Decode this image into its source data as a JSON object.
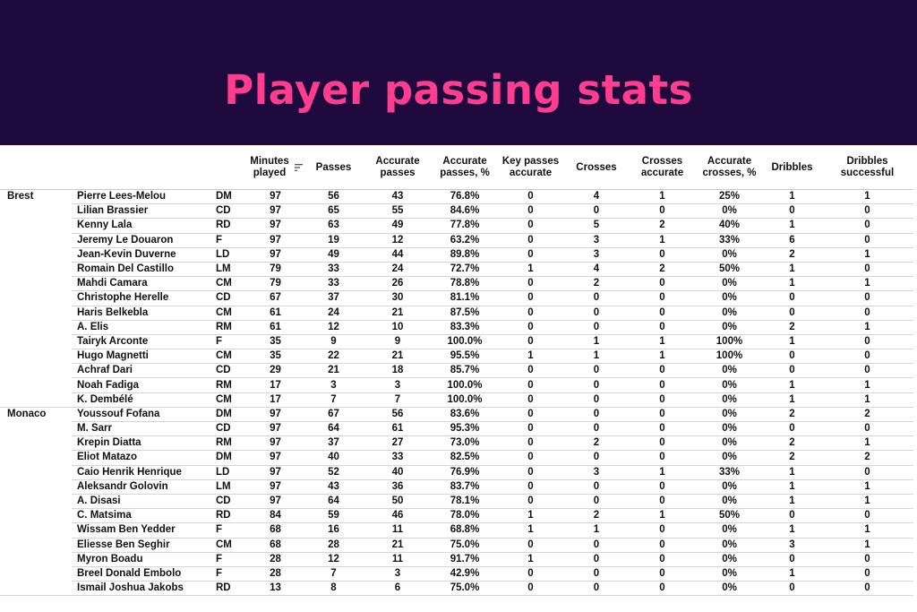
{
  "title": "Player passing stats",
  "columns": {
    "minutes": "Minutes played",
    "passes": "Passes",
    "accurate_passes": "Accurate passes",
    "accurate_passes_pct": "Accurate passes, %",
    "key_passes": "Key passes accurate",
    "crosses": "Crosses",
    "crosses_accurate": "Crosses accurate",
    "crosses_pct": "Accurate crosses, %",
    "dribbles": "Dribbles",
    "dribbles_successful": "Dribbles successful"
  },
  "sort_icon": "sort-descending-icon",
  "teams": [
    {
      "name": "Brest",
      "players": [
        [
          "Pierre Lees-Melou",
          "DM",
          "97",
          "56",
          "43",
          "76.8%",
          "0",
          "4",
          "1",
          "25%",
          "1",
          "1"
        ],
        [
          "Lilian Brassier",
          "CD",
          "97",
          "65",
          "55",
          "84.6%",
          "0",
          "0",
          "0",
          "0%",
          "0",
          "0"
        ],
        [
          "Kenny Lala",
          "RD",
          "97",
          "63",
          "49",
          "77.8%",
          "0",
          "5",
          "2",
          "40%",
          "1",
          "0"
        ],
        [
          "Jeremy Le Douaron",
          "F",
          "97",
          "19",
          "12",
          "63.2%",
          "0",
          "3",
          "1",
          "33%",
          "6",
          "0"
        ],
        [
          "Jean-Kevin Duverne",
          "LD",
          "97",
          "49",
          "44",
          "89.8%",
          "0",
          "3",
          "0",
          "0%",
          "2",
          "1"
        ],
        [
          "Romain Del Castillo",
          "LM",
          "79",
          "33",
          "24",
          "72.7%",
          "1",
          "4",
          "2",
          "50%",
          "1",
          "0"
        ],
        [
          "Mahdi Camara",
          "CM",
          "79",
          "33",
          "26",
          "78.8%",
          "0",
          "2",
          "0",
          "0%",
          "1",
          "1"
        ],
        [
          "Christophe Herelle",
          "CD",
          "67",
          "37",
          "30",
          "81.1%",
          "0",
          "0",
          "0",
          "0%",
          "0",
          "0"
        ],
        [
          "Haris Belkebla",
          "CM",
          "61",
          "24",
          "21",
          "87.5%",
          "0",
          "0",
          "0",
          "0%",
          "0",
          "0"
        ],
        [
          "A. Elis",
          "RM",
          "61",
          "12",
          "10",
          "83.3%",
          "0",
          "0",
          "0",
          "0%",
          "2",
          "1"
        ],
        [
          "Tairyk Arconte",
          "F",
          "35",
          "9",
          "9",
          "100.0%",
          "0",
          "1",
          "1",
          "100%",
          "1",
          "0"
        ],
        [
          "Hugo Magnetti",
          "CM",
          "35",
          "22",
          "21",
          "95.5%",
          "1",
          "1",
          "1",
          "100%",
          "0",
          "0"
        ],
        [
          "Achraf Dari",
          "CD",
          "29",
          "21",
          "18",
          "85.7%",
          "0",
          "0",
          "0",
          "0%",
          "0",
          "0"
        ],
        [
          "Noah Fadiga",
          "RM",
          "17",
          "3",
          "3",
          "100.0%",
          "0",
          "0",
          "0",
          "0%",
          "1",
          "1"
        ],
        [
          "K. Dembélé",
          "CM",
          "17",
          "7",
          "7",
          "100.0%",
          "0",
          "0",
          "0",
          "0%",
          "1",
          "1"
        ]
      ]
    },
    {
      "name": "Monaco",
      "players": [
        [
          "Youssouf Fofana",
          "DM",
          "97",
          "67",
          "56",
          "83.6%",
          "0",
          "0",
          "0",
          "0%",
          "2",
          "2"
        ],
        [
          "M. Sarr",
          "CD",
          "97",
          "64",
          "61",
          "95.3%",
          "0",
          "0",
          "0",
          "0%",
          "0",
          "0"
        ],
        [
          "Krepin Diatta",
          "RM",
          "97",
          "37",
          "27",
          "73.0%",
          "0",
          "2",
          "0",
          "0%",
          "2",
          "1"
        ],
        [
          "Eliot Matazo",
          "DM",
          "97",
          "40",
          "33",
          "82.5%",
          "0",
          "0",
          "0",
          "0%",
          "2",
          "2"
        ],
        [
          "Caio Henrik Henrique",
          "LD",
          "97",
          "52",
          "40",
          "76.9%",
          "0",
          "3",
          "1",
          "33%",
          "1",
          "0"
        ],
        [
          "Aleksandr Golovin",
          "LM",
          "97",
          "43",
          "36",
          "83.7%",
          "0",
          "0",
          "0",
          "0%",
          "1",
          "1"
        ],
        [
          "A. Disasi",
          "CD",
          "97",
          "64",
          "50",
          "78.1%",
          "0",
          "0",
          "0",
          "0%",
          "1",
          "1"
        ],
        [
          "C. Matsima",
          "RD",
          "84",
          "59",
          "46",
          "78.0%",
          "1",
          "2",
          "1",
          "50%",
          "0",
          "0"
        ],
        [
          "Wissam Ben Yedder",
          "F",
          "68",
          "16",
          "11",
          "68.8%",
          "1",
          "1",
          "0",
          "0%",
          "1",
          "1"
        ],
        [
          "Eliesse Ben Seghir",
          "CM",
          "68",
          "28",
          "21",
          "75.0%",
          "0",
          "0",
          "0",
          "0%",
          "3",
          "1"
        ],
        [
          "Myron Boadu",
          "F",
          "28",
          "12",
          "11",
          "91.7%",
          "1",
          "0",
          "0",
          "0%",
          "0",
          "0"
        ],
        [
          "Breel Donald Embolo",
          "F",
          "28",
          "7",
          "3",
          "42.9%",
          "0",
          "0",
          "0",
          "0%",
          "1",
          "0"
        ],
        [
          "Ismail Joshua Jakobs",
          "RD",
          "13",
          "8",
          "6",
          "75.0%",
          "0",
          "0",
          "0",
          "0%",
          "0",
          "0"
        ]
      ]
    }
  ]
}
